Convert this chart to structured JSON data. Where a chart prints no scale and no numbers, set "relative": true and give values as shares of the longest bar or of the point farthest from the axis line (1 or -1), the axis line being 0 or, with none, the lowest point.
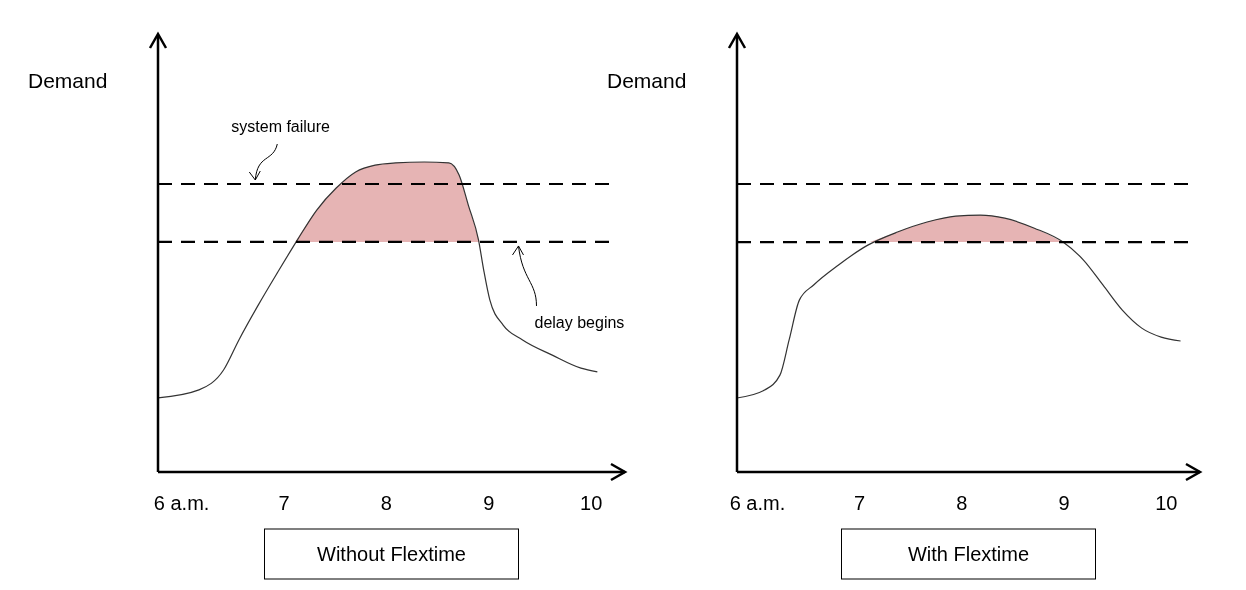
{
  "chart_data": [
    {
      "type": "line",
      "title": "Without Flextime",
      "ylabel": "Demand",
      "relative": true,
      "xlim": [
        5.77,
        10.33
      ],
      "xticks": [
        {
          "value": 6,
          "label": "6 a.m."
        },
        7,
        8,
        9,
        10
      ],
      "line_style": "solid",
      "marker": "none",
      "series": [
        {
          "type": "line",
          "color": "#333333",
          "x": [
            5.77,
            6.17,
            6.41,
            6.56,
            6.75,
            6.94,
            7.13,
            7.32,
            7.51,
            7.7,
            7.89,
            8.09,
            8.37,
            8.61,
            8.71,
            8.8,
            8.9,
            8.95,
            9.01,
            9.14,
            9.33,
            9.62,
            9.9,
            10.06
          ],
          "values": [
            0.239,
            0.265,
            0.329,
            0.426,
            0.539,
            0.645,
            0.748,
            0.845,
            0.916,
            0.968,
            0.99,
            0.997,
            1,
            0.997,
            0.958,
            0.861,
            0.748,
            0.652,
            0.555,
            0.474,
            0.426,
            0.377,
            0.335,
            0.323
          ]
        },
        {
          "type": "area",
          "color": "#e6b4b4",
          "x": [
            7.11,
            7.32,
            7.51,
            7.7,
            7.89,
            8.09,
            8.37,
            8.61,
            8.71,
            8.8,
            8.91
          ],
          "values": [
            0.742,
            0.845,
            0.916,
            0.968,
            0.99,
            0.997,
            1,
            0.997,
            0.958,
            0.861,
            0.742
          ]
        }
      ],
      "ref_lines": [
        {
          "axis": "y",
          "value": 0.929,
          "line_style": "dashed",
          "color": "#000000"
        },
        {
          "axis": "y",
          "value": 0.742,
          "line_style": "dashed",
          "color": "#000000"
        }
      ],
      "annotations": [
        {
          "text": "system failure",
          "x": 6.72,
          "y": 0.929
        },
        {
          "text": "delay begins",
          "x": 9.29,
          "y": 0.742
        }
      ]
    },
    {
      "type": "line",
      "title": "With Flextime",
      "ylabel": "Demand",
      "relative": true,
      "xlim": [
        5.8,
        10.33
      ],
      "xticks": [
        {
          "value": 6,
          "label": "6 a.m."
        },
        7,
        8,
        9,
        10
      ],
      "line_style": "solid",
      "marker": "none",
      "series": [
        {
          "type": "line",
          "color": "#333333",
          "x": [
            5.8,
            6.07,
            6.22,
            6.31,
            6.41,
            6.55,
            6.79,
            7.08,
            7.37,
            7.66,
            7.94,
            8.18,
            8.42,
            8.71,
            8.99,
            9.19,
            9.38,
            9.57,
            9.76,
            9.95,
            10.14
          ],
          "values": [
            0.288,
            0.319,
            0.377,
            0.514,
            0.669,
            0.728,
            0.805,
            0.883,
            0.934,
            0.973,
            0.996,
            1,
            0.988,
            0.949,
            0.895,
            0.825,
            0.728,
            0.63,
            0.56,
            0.525,
            0.51
          ]
        },
        {
          "type": "area",
          "color": "#e6b4b4",
          "x": [
            7.1,
            7.37,
            7.66,
            7.94,
            8.18,
            8.42,
            8.71,
            8.99
          ],
          "values": [
            0.895,
            0.934,
            0.973,
            0.996,
            1,
            0.988,
            0.949,
            0.895
          ]
        }
      ],
      "ref_lines": [
        {
          "axis": "y",
          "value": 1.121,
          "line_style": "dashed",
          "color": "#000000"
        },
        {
          "axis": "y",
          "value": 0.895,
          "line_style": "dashed",
          "color": "#000000"
        }
      ]
    }
  ]
}
